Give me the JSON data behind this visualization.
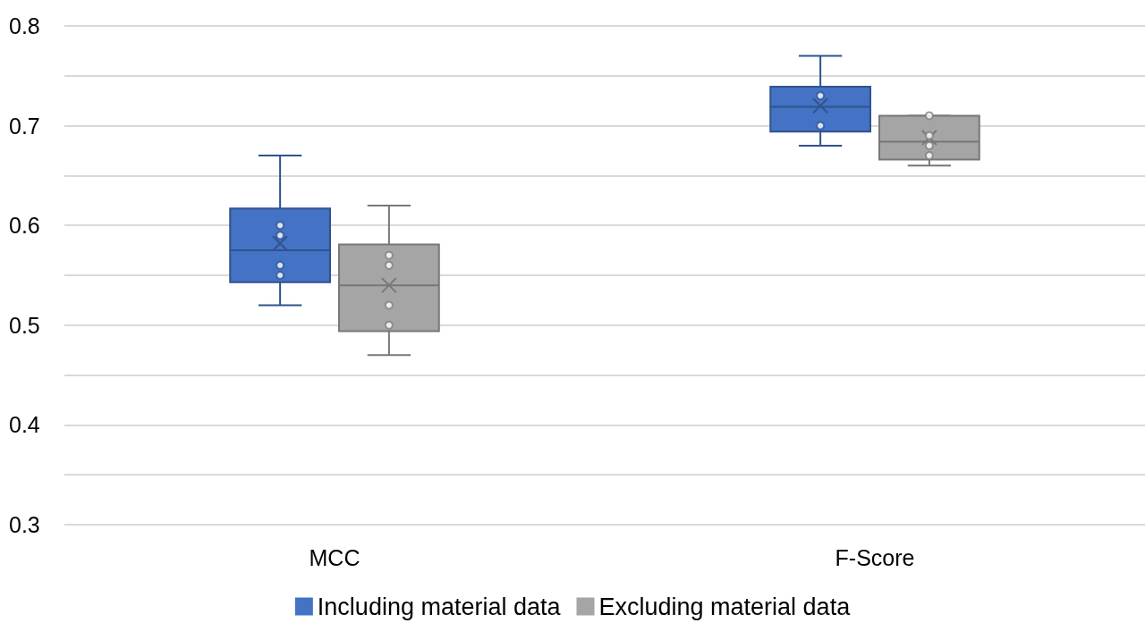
{
  "chart_data": {
    "type": "box",
    "categories": [
      "MCC",
      "F-Score"
    ],
    "ylim": [
      0.3,
      0.8
    ],
    "yticks": [
      0.3,
      {
        "value": 0.35,
        "label": null
      },
      0.4,
      {
        "value": 0.45,
        "label": null
      },
      0.5,
      {
        "value": 0.55,
        "label": null
      },
      0.6,
      {
        "value": 0.65,
        "label": null
      },
      0.7,
      {
        "value": 0.75,
        "label": null
      },
      0.8
    ],
    "grid": "y",
    "legend": "bottom",
    "series": [
      {
        "name": "Including material data",
        "color": "#4472c4",
        "boxes": [
          {
            "low": 0.52,
            "q1": 0.543,
            "median": 0.575,
            "q3": 0.617,
            "high": 0.67,
            "mean": 0.582
          },
          {
            "low": 0.68,
            "q1": 0.694,
            "median": 0.719,
            "q3": 0.739,
            "high": 0.77,
            "mean": 0.72
          }
        ]
      },
      {
        "name": "Excluding material data",
        "color": "#a5a5a5",
        "boxes": [
          {
            "low": 0.47,
            "q1": 0.494,
            "median": 0.54,
            "q3": 0.581,
            "high": 0.62,
            "mean": 0.54
          },
          {
            "low": 0.66,
            "q1": 0.666,
            "median": 0.684,
            "q3": 0.71,
            "high": 0.71,
            "mean": 0.688
          }
        ]
      },
      {
        "type": "scatter",
        "color": "#2f5597",
        "x": [
          "MCC",
          "MCC",
          "MCC",
          "MCC",
          "F-Score",
          "F-Score"
        ],
        "values": [
          0.6,
          0.59,
          0.56,
          0.55,
          0.73,
          0.7
        ]
      },
      {
        "type": "scatter",
        "color": "#7f7f7f",
        "x": [
          "MCC",
          "MCC",
          "MCC",
          "MCC",
          "F-Score",
          "F-Score",
          "F-Score",
          "F-Score"
        ],
        "values": [
          0.57,
          0.56,
          0.52,
          0.5,
          0.71,
          0.69,
          0.68,
          0.67
        ]
      }
    ]
  }
}
